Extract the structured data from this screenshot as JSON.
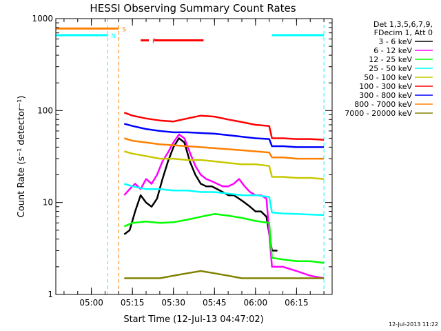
{
  "chart_data": {
    "type": "line",
    "title": "HESSI Observing Summary Count Rates",
    "xlabel": "Start Time (12-Jul-13 04:47:02)",
    "ylabel": "Count Rate (s⁻¹ detector⁻¹)",
    "ylim": [
      1,
      1000
    ],
    "yscale": "log",
    "xlim": [
      "04:47",
      "06:28"
    ],
    "x_ticks": [
      "05:00",
      "05:15",
      "05:30",
      "05:45",
      "06:00",
      "06:15"
    ],
    "y_ticks": [
      "1",
      "10",
      "100",
      "1000"
    ],
    "grid": false,
    "legend_position": "top-right",
    "legend_header": [
      "Det 1,3,5,6,7,9,",
      "FDecim 1, Att 0"
    ],
    "timestamp": "12-Jul-2013 11:22",
    "flags": [
      {
        "label": "S",
        "color": "#ff8000",
        "segments": [
          [
            "04:47",
            "05:10"
          ]
        ],
        "level": 780
      },
      {
        "label": "N",
        "color": "#00ffff",
        "segments": [
          [
            "04:47",
            "05:06"
          ],
          [
            "06:06",
            "06:25"
          ]
        ],
        "level": 660
      },
      {
        "label": "F",
        "color": "#ff0000",
        "segments": [
          [
            "05:18",
            "05:21"
          ],
          [
            "05:23",
            "05:41"
          ]
        ],
        "level": 580
      }
    ],
    "markers": [
      {
        "time": "05:06",
        "color": "#00ffff"
      },
      {
        "time": "05:10",
        "color": "#ff8000"
      },
      {
        "time": "06:25",
        "color": "#00ffff"
      }
    ],
    "series": [
      {
        "name": "3 - 6 keV",
        "color": "#000000",
        "x": [
          "05:12",
          "05:14",
          "05:16",
          "05:18",
          "05:20",
          "05:22",
          "05:24",
          "05:26",
          "05:28",
          "05:30",
          "05:32",
          "05:34",
          "05:36",
          "05:38",
          "05:40",
          "05:42",
          "05:44",
          "05:46",
          "05:48",
          "05:50",
          "05:52",
          "05:54",
          "05:56",
          "05:58",
          "06:00",
          "06:02",
          "06:04",
          "06:06",
          "06:08"
        ],
        "y": [
          4.5,
          5,
          8,
          12,
          10,
          9,
          11,
          18,
          28,
          40,
          50,
          45,
          28,
          20,
          16,
          15,
          15,
          14,
          13,
          12,
          12,
          11,
          10,
          9,
          8,
          8,
          7,
          3,
          3
        ]
      },
      {
        "name": "6 - 12 keV",
        "color": "#ff00ff",
        "x": [
          "05:12",
          "05:14",
          "05:16",
          "05:18",
          "05:20",
          "05:22",
          "05:24",
          "05:26",
          "05:28",
          "05:30",
          "05:32",
          "05:34",
          "05:36",
          "05:38",
          "05:40",
          "05:42",
          "05:44",
          "05:46",
          "05:48",
          "05:50",
          "05:52",
          "05:54",
          "05:56",
          "05:58",
          "06:00",
          "06:02",
          "06:04",
          "06:06",
          "06:10",
          "06:15",
          "06:20",
          "06:25"
        ],
        "y": [
          12,
          14,
          16,
          14,
          18,
          16,
          20,
          28,
          35,
          45,
          55,
          50,
          35,
          25,
          20,
          18,
          17,
          16,
          15,
          15,
          16,
          18,
          15,
          13,
          12,
          12,
          11,
          2,
          2,
          1.8,
          1.6,
          1.5
        ]
      },
      {
        "name": "12 - 25 keV",
        "color": "#00ff00",
        "x": [
          "05:12",
          "05:15",
          "05:20",
          "05:25",
          "05:30",
          "05:35",
          "05:40",
          "05:45",
          "05:50",
          "05:55",
          "06:00",
          "06:05",
          "06:06",
          "06:10",
          "06:15",
          "06:20",
          "06:25"
        ],
        "y": [
          5.5,
          6,
          6.2,
          6,
          6.1,
          6.5,
          7,
          7.5,
          7.2,
          6.8,
          6.3,
          6,
          2.5,
          2.4,
          2.3,
          2.3,
          2.2
        ]
      },
      {
        "name": "25 - 50 keV",
        "color": "#00ffff",
        "x": [
          "05:12",
          "05:15",
          "05:20",
          "05:25",
          "05:30",
          "05:35",
          "05:40",
          "05:45",
          "05:50",
          "05:55",
          "06:00",
          "06:05",
          "06:06",
          "06:10",
          "06:15",
          "06:20",
          "06:25"
        ],
        "y": [
          16,
          15,
          14,
          14,
          13.5,
          13.5,
          13,
          13,
          12.5,
          12,
          12,
          11.5,
          7.8,
          7.6,
          7.5,
          7.4,
          7.3
        ]
      },
      {
        "name": "50 - 100 keV",
        "color": "#c8c800",
        "x": [
          "05:12",
          "05:15",
          "05:20",
          "05:25",
          "05:30",
          "05:35",
          "05:40",
          "05:45",
          "05:50",
          "05:55",
          "06:00",
          "06:05",
          "06:06",
          "06:10",
          "06:15",
          "06:20",
          "06:25"
        ],
        "y": [
          36,
          34,
          32,
          30,
          30,
          29,
          29,
          28,
          27,
          26,
          26,
          25,
          19,
          19,
          18.5,
          18.5,
          18
        ]
      },
      {
        "name": "100 - 300 keV",
        "color": "#ff0000",
        "x": [
          "05:12",
          "05:15",
          "05:20",
          "05:25",
          "05:30",
          "05:35",
          "05:40",
          "05:45",
          "05:50",
          "05:55",
          "06:00",
          "06:05",
          "06:06",
          "06:10",
          "06:15",
          "06:20",
          "06:25"
        ],
        "y": [
          95,
          88,
          82,
          78,
          76,
          82,
          88,
          86,
          80,
          75,
          70,
          68,
          50,
          50,
          49,
          49,
          48
        ]
      },
      {
        "name": "300 - 800 keV",
        "color": "#0000ff",
        "x": [
          "05:12",
          "05:15",
          "05:20",
          "05:25",
          "05:30",
          "05:35",
          "05:40",
          "05:45",
          "05:50",
          "05:55",
          "06:00",
          "06:05",
          "06:06",
          "06:10",
          "06:15",
          "06:20",
          "06:25"
        ],
        "y": [
          72,
          68,
          63,
          60,
          58,
          58,
          57,
          56,
          54,
          52,
          50,
          49,
          41,
          41,
          40,
          40,
          40
        ]
      },
      {
        "name": "800 - 7000 keV",
        "color": "#ff8000",
        "x": [
          "05:12",
          "05:15",
          "05:20",
          "05:25",
          "05:30",
          "05:35",
          "05:40",
          "05:45",
          "05:50",
          "05:55",
          "06:00",
          "06:05",
          "06:06",
          "06:10",
          "06:15",
          "06:20",
          "06:25"
        ],
        "y": [
          50,
          47,
          45,
          43,
          42,
          41,
          40,
          39,
          38,
          37,
          36,
          35,
          31,
          31,
          30,
          30,
          30
        ]
      },
      {
        "name": "7000 - 20000 keV",
        "color": "#808000",
        "x": [
          "05:12",
          "05:15",
          "05:20",
          "05:25",
          "05:30",
          "05:35",
          "05:40",
          "05:45",
          "05:50",
          "05:55",
          "06:00",
          "06:05",
          "06:06",
          "06:10",
          "06:15",
          "06:20",
          "06:25"
        ],
        "y": [
          1.5,
          1.5,
          1.5,
          1.5,
          1.6,
          1.7,
          1.8,
          1.7,
          1.6,
          1.5,
          1.5,
          1.5,
          1.5,
          1.5,
          1.5,
          1.5,
          1.5
        ]
      }
    ]
  }
}
